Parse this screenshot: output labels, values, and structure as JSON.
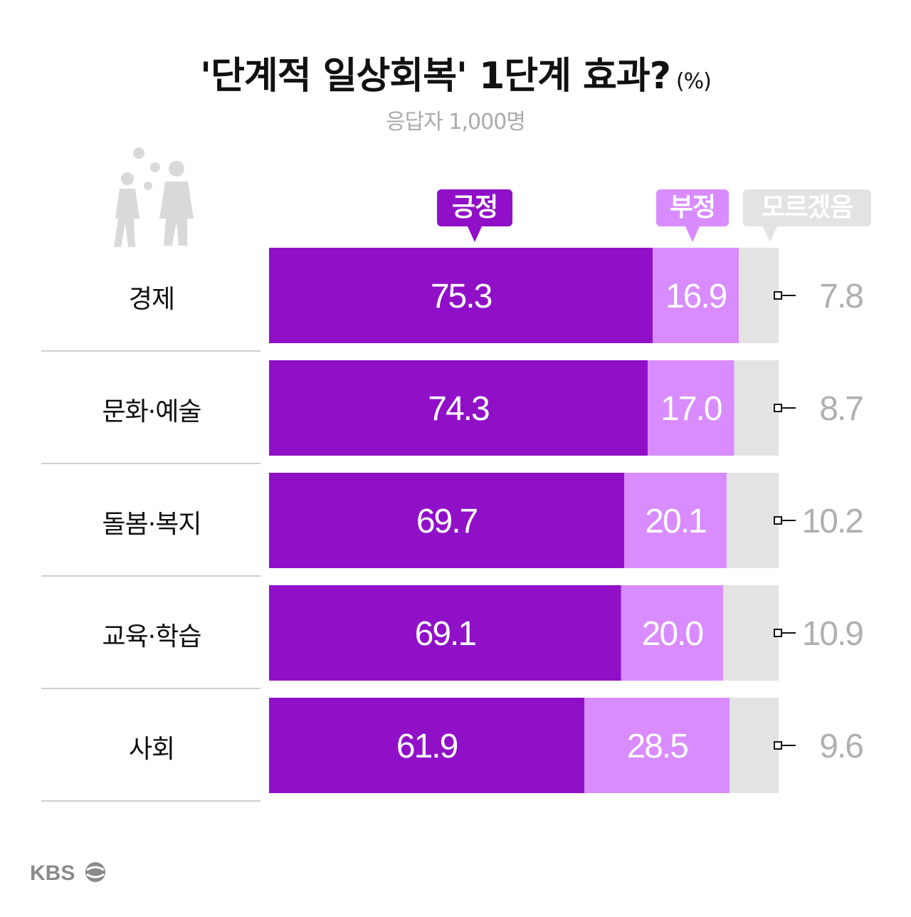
{
  "header": {
    "title": "'단계적 일상회복' 1단계 효과?",
    "unit": "(%)",
    "subtitle": "응답자 1,000명"
  },
  "legend": {
    "positive": "긍정",
    "negative": "부정",
    "unknown": "모르겠음"
  },
  "colors": {
    "positive": "#9010c8",
    "negative": "#d98cff",
    "unknown": "#e3e3e3",
    "unknown_text": "#b0b0b0"
  },
  "chart_data": {
    "type": "bar",
    "orientation": "horizontal",
    "stacked": true,
    "title": "'단계적 일상회복' 1단계 효과?",
    "unit": "%",
    "categories": [
      "경제",
      "문화·예술",
      "돌봄·복지",
      "교육·학습",
      "사회"
    ],
    "series": [
      {
        "name": "긍정",
        "values": [
          75.3,
          74.3,
          69.7,
          69.1,
          61.9
        ]
      },
      {
        "name": "부정",
        "values": [
          16.9,
          17.0,
          20.1,
          20.0,
          28.5
        ]
      },
      {
        "name": "모르겠음",
        "values": [
          7.8,
          8.7,
          10.2,
          10.9,
          9.6
        ]
      }
    ],
    "xlim": [
      0,
      100
    ],
    "grid": false,
    "legend_position": "top"
  },
  "footer": {
    "brand": "KBS"
  }
}
